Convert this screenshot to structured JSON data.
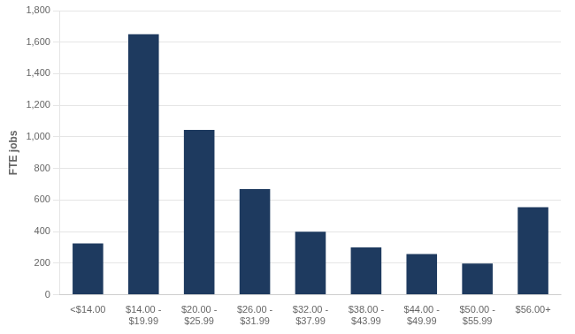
{
  "chart_data": {
    "type": "bar",
    "categories": [
      "<$14.00",
      "$14.00 -\n$19.99",
      "$20.00 -\n$25.99",
      "$26.00 -\n$31.99",
      "$32.00 -\n$37.99",
      "$38.00 -\n$43.99",
      "$44.00 -\n$49.99",
      "$50.00 -\n$55.99",
      "$56.00+"
    ],
    "values": [
      325,
      1650,
      1045,
      670,
      400,
      300,
      258,
      198,
      555
    ],
    "color": "#1e3a5f",
    "ylabel": "FTE jobs",
    "ylim": [
      0,
      1800
    ],
    "yticks": [
      0,
      200,
      400,
      600,
      800,
      {
        "value": 1000,
        "label": "1,000"
      },
      {
        "value": 1200,
        "label": "1,200"
      },
      {
        "value": 1400,
        "label": "1,400"
      },
      {
        "value": 1600,
        "label": "1,600"
      },
      {
        "value": 1800,
        "label": "1,800"
      }
    ],
    "grid": true
  }
}
